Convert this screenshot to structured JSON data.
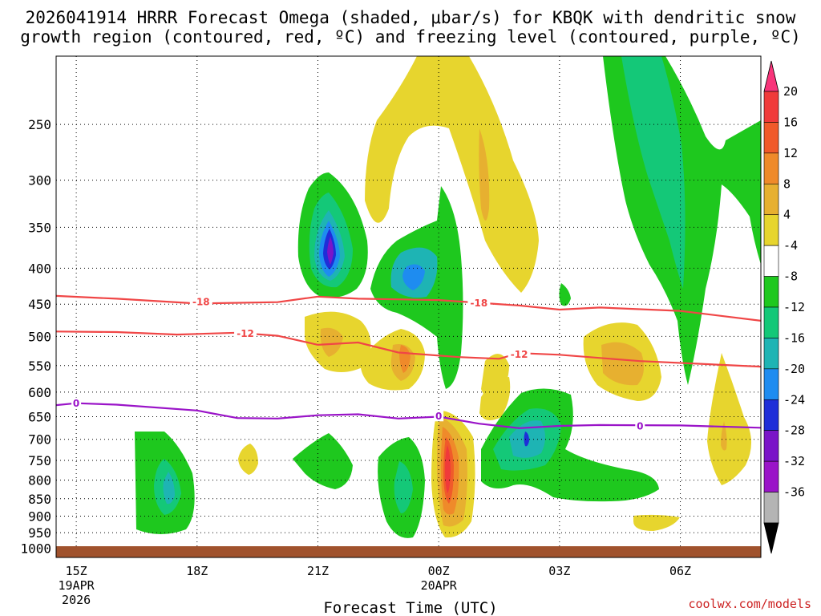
{
  "chart_data": {
    "type": "heatmap",
    "title_line1": "2026041914 HRRR Forecast Omega (shaded, μbar/s) for KBQK with dendritic snow",
    "title_line2": "growth region (contoured, red, ºC) and freezing level (contoured, purple, ºC)",
    "xlabel": "Forecast Time (UTC)",
    "credit": "coolwx.com/models",
    "y_ticks": [
      "250",
      "300",
      "350",
      "400",
      "450",
      "500",
      "550",
      "600",
      "650",
      "700",
      "750",
      "800",
      "850",
      "900",
      "950",
      "1000"
    ],
    "x_ticks": [
      {
        "label": "15Z",
        "sub1": "19APR",
        "sub2": "2026",
        "hour": 15
      },
      {
        "label": "18Z",
        "sub1": "",
        "sub2": "",
        "hour": 18
      },
      {
        "label": "21Z",
        "sub1": "",
        "sub2": "",
        "hour": 21
      },
      {
        "label": "00Z",
        "sub1": "20APR",
        "sub2": "",
        "hour": 24
      },
      {
        "label": "03Z",
        "sub1": "",
        "sub2": "",
        "hour": 27
      },
      {
        "label": "06Z",
        "sub1": "",
        "sub2": "",
        "hour": 30
      }
    ],
    "colorbar": {
      "labels": [
        "20",
        "16",
        "12",
        "8",
        "4",
        "-4",
        "-8",
        "-12",
        "-16",
        "-20",
        "-24",
        "-28",
        "-32",
        "-36"
      ],
      "colors": [
        "#f8347a",
        "#f03a3a",
        "#f05a2a",
        "#ef8a2a",
        "#e7b030",
        "#e7d52e",
        "#ffffff",
        "#1ec81e",
        "#14c878",
        "#1eb4b4",
        "#1e8cf0",
        "#1e2ed8",
        "#7a14c8",
        "#9a14c8",
        "#b4b4b4",
        "#000000"
      ]
    },
    "contours": {
      "dgz_cold": {
        "label": "-18",
        "color": "#f04646",
        "points": [
          [
            14.5,
            438
          ],
          [
            16,
            442
          ],
          [
            18,
            449
          ],
          [
            20,
            447
          ],
          [
            21,
            439
          ],
          [
            22,
            442
          ],
          [
            24,
            444
          ],
          [
            26,
            452
          ],
          [
            27,
            458
          ],
          [
            28,
            455
          ],
          [
            30,
            460
          ],
          [
            32,
            475
          ]
        ]
      },
      "dgz_warm": {
        "label": "-12",
        "color": "#f04646",
        "points": [
          [
            14.5,
            492
          ],
          [
            16,
            493
          ],
          [
            17.5,
            497
          ],
          [
            19,
            494
          ],
          [
            20,
            499
          ],
          [
            21,
            514
          ],
          [
            22,
            510
          ],
          [
            23,
            527
          ],
          [
            24.5,
            535
          ],
          [
            25.5,
            538
          ],
          [
            26,
            528
          ],
          [
            27,
            531
          ],
          [
            29,
            542
          ],
          [
            32,
            552
          ]
        ]
      },
      "freezing": {
        "label": "0",
        "color": "#9a14c8",
        "points": [
          [
            14.5,
            626
          ],
          [
            15,
            622
          ],
          [
            16,
            625
          ],
          [
            18,
            637
          ],
          [
            19,
            653
          ],
          [
            20,
            654
          ],
          [
            21,
            647
          ],
          [
            22,
            645
          ],
          [
            23,
            654
          ],
          [
            24,
            650
          ],
          [
            25,
            665
          ],
          [
            26,
            675
          ],
          [
            27,
            670
          ],
          [
            28,
            668
          ],
          [
            30,
            669
          ],
          [
            32,
            674
          ]
        ]
      }
    },
    "contour_labels": [
      {
        "text": "-18",
        "hour": 18.1,
        "p": 446,
        "color": "#f04646"
      },
      {
        "text": "-18",
        "hour": 25.0,
        "p": 448,
        "color": "#f04646"
      },
      {
        "text": "-12",
        "hour": 19.2,
        "p": 495,
        "color": "#f04646"
      },
      {
        "text": "-12",
        "hour": 26.0,
        "p": 530,
        "color": "#f04646"
      },
      {
        "text": "0",
        "hour": 15.0,
        "p": 622,
        "color": "#9a14c8"
      },
      {
        "text": "0",
        "hour": 24.0,
        "p": 648,
        "color": "#9a14c8"
      },
      {
        "text": "0",
        "hour": 29.0,
        "p": 670,
        "color": "#9a14c8"
      }
    ],
    "ylim": [
      200,
      1030
    ],
    "xlim_hours": [
      14.5,
      32
    ],
    "grid": true
  }
}
